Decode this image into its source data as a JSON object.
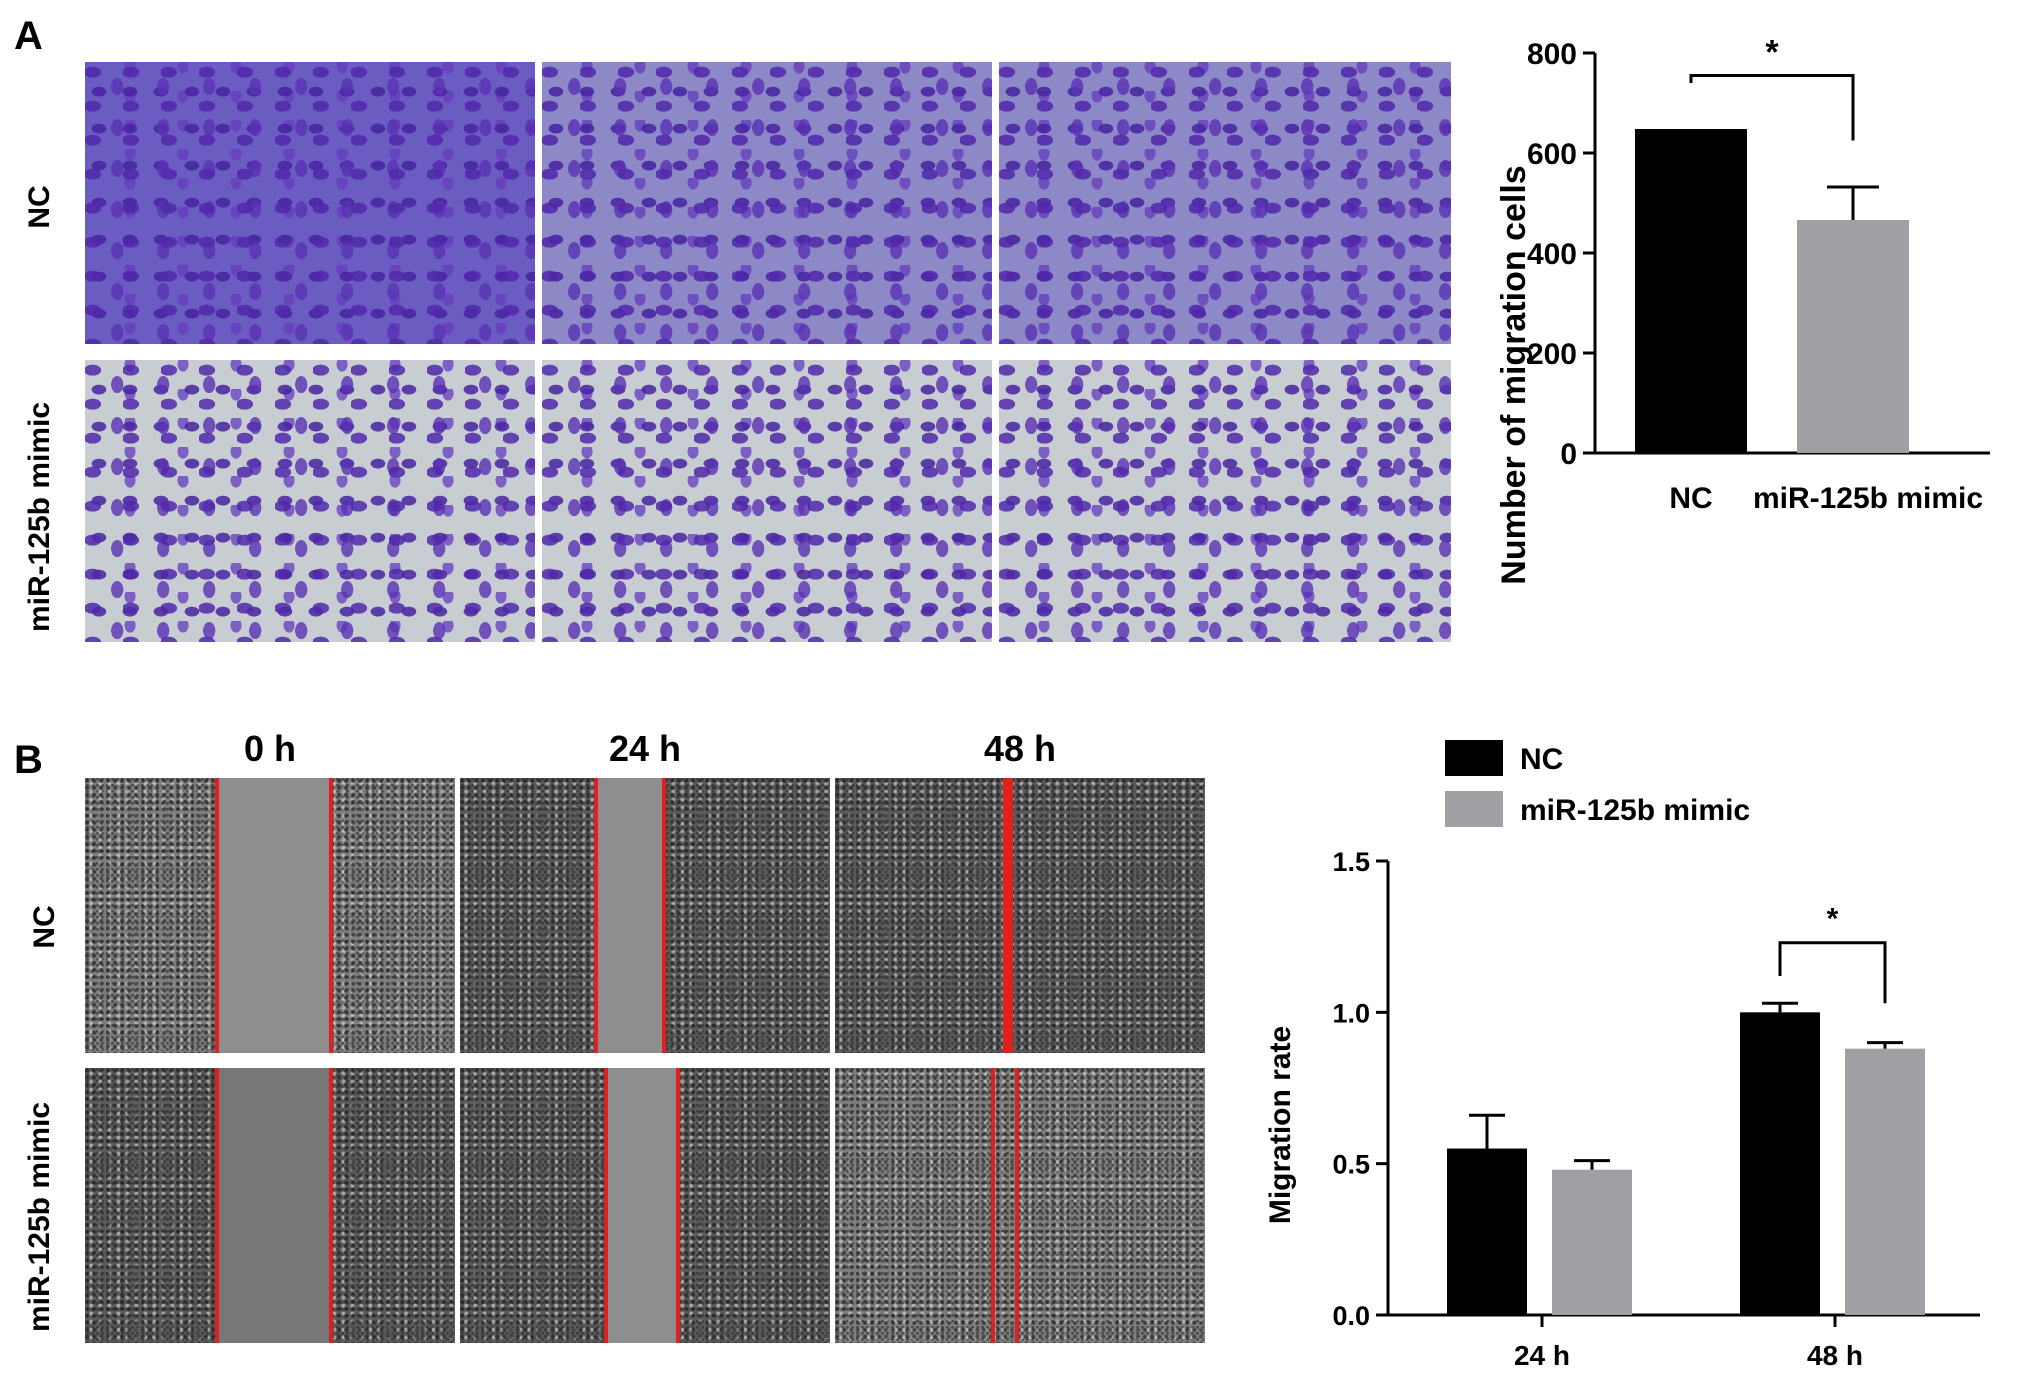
{
  "panel_a": {
    "letter": "A",
    "row_labels": [
      "NC",
      "miR-125b mimic"
    ]
  },
  "panel_b": {
    "letter": "B",
    "row_labels": [
      "NC",
      "miR-125b mimic"
    ],
    "column_labels": [
      "0 h",
      "24 h",
      "48 h"
    ]
  },
  "chart_data": [
    {
      "type": "bar",
      "title": "",
      "xlabel": "",
      "ylabel": "Number of migration cells",
      "categories": [
        "NC",
        "miR-125b mimic"
      ],
      "values": [
        648,
        466
      ],
      "error": [
        0,
        66
      ],
      "ylim": [
        0,
        800
      ],
      "yticks": [
        "0",
        "200",
        "400",
        "600",
        "800"
      ],
      "colors": [
        "#000000",
        "#a0a0a4"
      ],
      "significance": "*",
      "grid": false
    },
    {
      "type": "bar",
      "title": "",
      "xlabel": "",
      "ylabel": "Migration rate",
      "categories": [
        "24 h",
        "48 h"
      ],
      "series": [
        {
          "name": "NC",
          "values": [
            0.55,
            1.0
          ],
          "error": [
            0.11,
            0.03
          ],
          "color": "#000000"
        },
        {
          "name": "miR-125b mimic",
          "values": [
            0.48,
            0.88
          ],
          "error": [
            0.03,
            0.02
          ],
          "color": "#a0a0a4"
        }
      ],
      "ylim": [
        0,
        1.5
      ],
      "yticks": [
        "0.0",
        "0.5",
        "1.0",
        "1.5"
      ],
      "significance": "*",
      "legend": "top-left",
      "grid": false
    }
  ]
}
